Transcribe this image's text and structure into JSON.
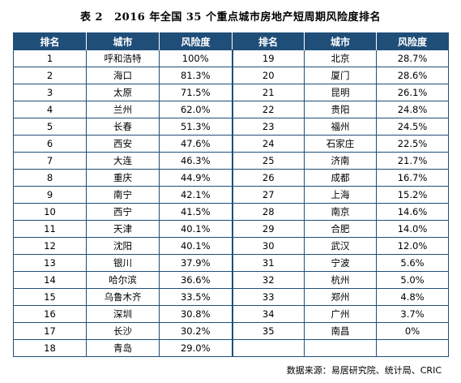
{
  "title": {
    "num": "表 2",
    "text": "2016 年全国 35 个重点城市房地产短周期风险度排名"
  },
  "headers": {
    "rank": "排名",
    "city": "城市",
    "risk": "风险度"
  },
  "rows": [
    {
      "left": {
        "rank": "1",
        "city": "呼和浩特",
        "risk": "100%"
      },
      "right": {
        "rank": "19",
        "city": "北京",
        "risk": "28.7%"
      }
    },
    {
      "left": {
        "rank": "2",
        "city": "海口",
        "risk": "81.3%"
      },
      "right": {
        "rank": "20",
        "city": "厦门",
        "risk": "28.6%"
      }
    },
    {
      "left": {
        "rank": "3",
        "city": "太原",
        "risk": "71.5%"
      },
      "right": {
        "rank": "21",
        "city": "昆明",
        "risk": "26.1%"
      }
    },
    {
      "left": {
        "rank": "4",
        "city": "兰州",
        "risk": "62.0%"
      },
      "right": {
        "rank": "22",
        "city": "贵阳",
        "risk": "24.8%"
      }
    },
    {
      "left": {
        "rank": "5",
        "city": "长春",
        "risk": "51.3%"
      },
      "right": {
        "rank": "23",
        "city": "福州",
        "risk": "24.5%"
      }
    },
    {
      "left": {
        "rank": "6",
        "city": "西安",
        "risk": "47.6%"
      },
      "right": {
        "rank": "24",
        "city": "石家庄",
        "risk": "22.5%"
      }
    },
    {
      "left": {
        "rank": "7",
        "city": "大连",
        "risk": "46.3%"
      },
      "right": {
        "rank": "25",
        "city": "济南",
        "risk": "21.7%"
      }
    },
    {
      "left": {
        "rank": "8",
        "city": "重庆",
        "risk": "44.9%"
      },
      "right": {
        "rank": "26",
        "city": "成都",
        "risk": "16.7%"
      }
    },
    {
      "left": {
        "rank": "9",
        "city": "南宁",
        "risk": "42.1%"
      },
      "right": {
        "rank": "27",
        "city": "上海",
        "risk": "15.2%"
      }
    },
    {
      "left": {
        "rank": "10",
        "city": "西宁",
        "risk": "41.5%"
      },
      "right": {
        "rank": "28",
        "city": "南京",
        "risk": "14.6%"
      }
    },
    {
      "left": {
        "rank": "11",
        "city": "天津",
        "risk": "40.1%"
      },
      "right": {
        "rank": "29",
        "city": "合肥",
        "risk": "14.0%"
      }
    },
    {
      "left": {
        "rank": "12",
        "city": "沈阳",
        "risk": "40.1%"
      },
      "right": {
        "rank": "30",
        "city": "武汉",
        "risk": "12.0%"
      }
    },
    {
      "left": {
        "rank": "13",
        "city": "银川",
        "risk": "37.9%"
      },
      "right": {
        "rank": "31",
        "city": "宁波",
        "risk": "5.6%"
      }
    },
    {
      "left": {
        "rank": "14",
        "city": "哈尔滨",
        "risk": "36.6%"
      },
      "right": {
        "rank": "32",
        "city": "杭州",
        "risk": "5.0%"
      }
    },
    {
      "left": {
        "rank": "15",
        "city": "乌鲁木齐",
        "risk": "33.5%"
      },
      "right": {
        "rank": "33",
        "city": "郑州",
        "risk": "4.8%"
      }
    },
    {
      "left": {
        "rank": "16",
        "city": "深圳",
        "risk": "30.8%"
      },
      "right": {
        "rank": "34",
        "city": "广州",
        "risk": "3.7%"
      }
    },
    {
      "left": {
        "rank": "17",
        "city": "长沙",
        "risk": "30.2%"
      },
      "right": {
        "rank": "35",
        "city": "南昌",
        "risk": "0%"
      }
    },
    {
      "left": {
        "rank": "18",
        "city": "青岛",
        "risk": "29.0%"
      },
      "right": {
        "rank": "",
        "city": "",
        "risk": ""
      }
    }
  ],
  "source": "数据来源：易居研究院、统计局、CRIC",
  "colors": {
    "header_bg": "#1f4e79",
    "border": "#1f4e79",
    "header_text": "#ffffff"
  }
}
